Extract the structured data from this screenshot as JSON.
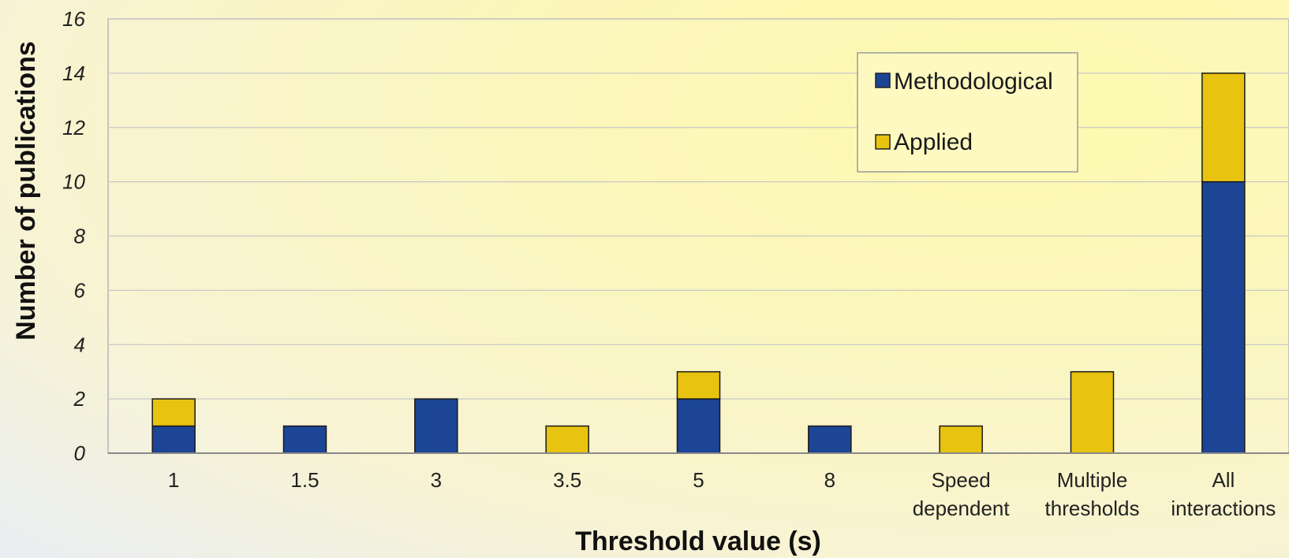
{
  "chart_data": {
    "type": "bar",
    "stacked": true,
    "title": "",
    "xlabel": "Threshold value (s)",
    "ylabel": "Number of publications",
    "ylim": [
      0,
      16
    ],
    "yticks": [
      0,
      2,
      4,
      6,
      8,
      10,
      12,
      14,
      16
    ],
    "grid": true,
    "legend_position": "top-right",
    "categories": [
      [
        "1"
      ],
      [
        "1.5"
      ],
      [
        "3"
      ],
      [
        "3.5"
      ],
      [
        "5"
      ],
      [
        "8"
      ],
      [
        "Speed",
        "dependent"
      ],
      [
        "Multiple",
        "thresholds"
      ],
      [
        "All",
        "interactions"
      ]
    ],
    "series": [
      {
        "name": "Methodological",
        "color": "#1c4596",
        "values": [
          1,
          1,
          2,
          0,
          2,
          1,
          0,
          0,
          10
        ]
      },
      {
        "name": "Applied",
        "color": "#e8c310",
        "values": [
          1,
          0,
          0,
          1,
          1,
          0,
          1,
          3,
          4
        ]
      }
    ]
  }
}
